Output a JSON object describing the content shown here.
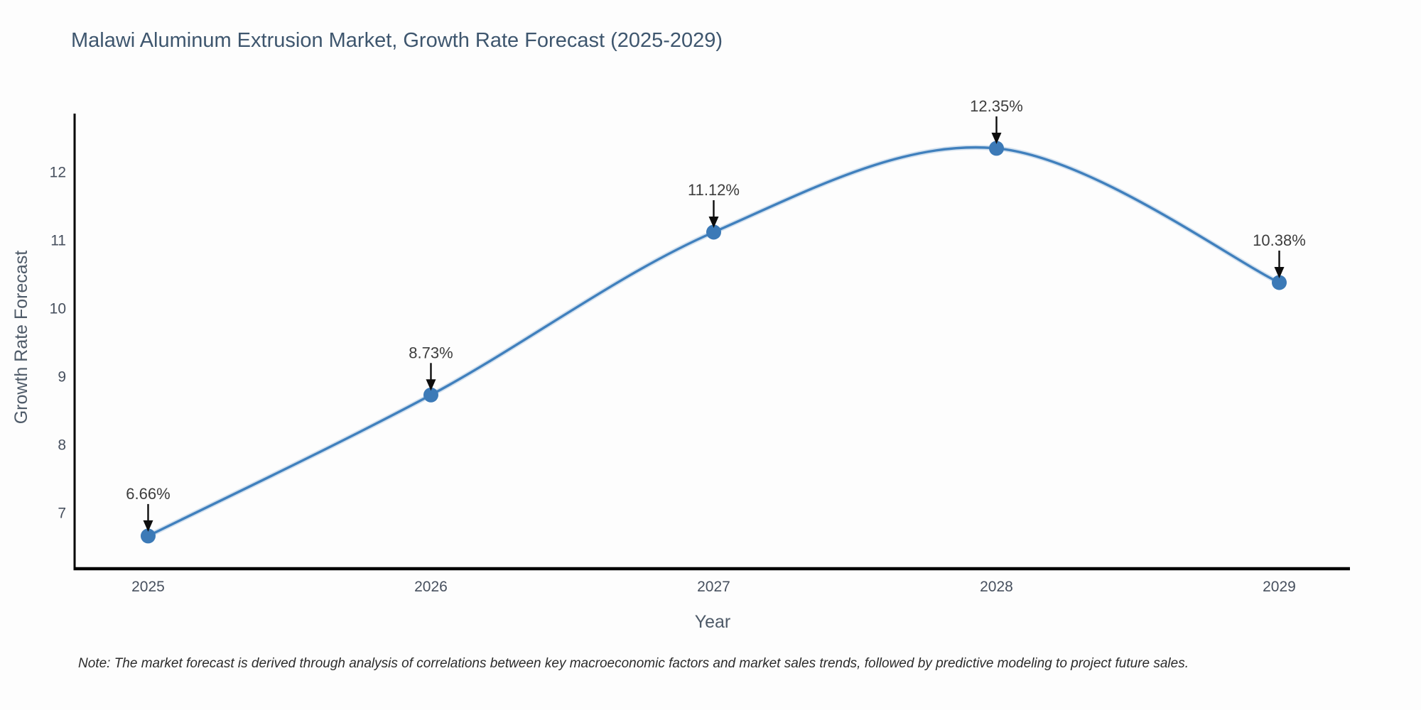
{
  "note": "Note: The market forecast is derived through analysis of correlations between key macroeconomic factors and market sales trends, followed by predictive modeling to project future sales.",
  "chart_data": {
    "type": "line",
    "title": "Malawi Aluminum Extrusion Market, Growth Rate Forecast (2025-2029)",
    "x": [
      2025,
      2026,
      2027,
      2028,
      2029
    ],
    "y": [
      6.66,
      8.73,
      11.12,
      12.35,
      10.38
    ],
    "point_labels": [
      "6.66%",
      "8.73%",
      "11.12%",
      "12.35%",
      "10.38%"
    ],
    "xlabel": "Year",
    "ylabel": "Growth Rate Forecast",
    "xtick_labels": [
      "2025",
      "2026",
      "2027",
      "2028",
      "2029"
    ],
    "ytick_values": [
      7,
      8,
      9,
      10,
      11,
      12
    ],
    "xlim": [
      2024.74,
      2029.25
    ],
    "ylim": [
      6.19,
      12.86
    ],
    "grid": false,
    "legend": false,
    "smooth": true,
    "line_color": "#4080bd",
    "marker_color": "#3c7ab7",
    "arrow_color": "#0d0d0d",
    "annotation_color": "#3d3d3d"
  },
  "colors": {
    "background": "#fdfdfd",
    "title": "#3e566e",
    "axis_label": "#4e5a68",
    "tick_label": "#47505e",
    "spine": "#000000",
    "note": "#2b2b2b"
  }
}
